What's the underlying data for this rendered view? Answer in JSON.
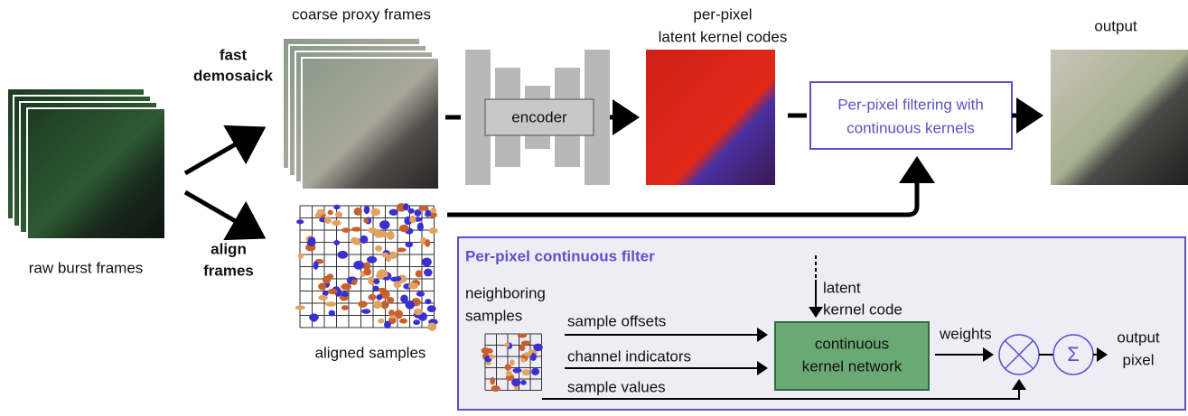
{
  "labels": {
    "coarse_proxy_frames": "coarse proxy frames",
    "fast_demosaick": [
      "fast",
      "demosaick"
    ],
    "latent_kernel_codes": [
      "per-pixel",
      "latent kernel codes"
    ],
    "output": "output",
    "raw_burst_frames": "raw burst frames",
    "encoder": "encoder",
    "filtering_box": [
      "Per-pixel filtering with",
      "continuous kernels"
    ],
    "align_frames": [
      "align",
      "frames"
    ],
    "aligned_samples": "aligned samples"
  },
  "filter_panel": {
    "title": "Per-pixel continuous filter",
    "neighboring_samples": [
      "neighboring",
      "samples"
    ],
    "latent_kernel_code": [
      "latent",
      "kernel code"
    ],
    "inputs": [
      "sample offsets",
      "channel indicators",
      "sample values"
    ],
    "network": [
      "continuous",
      "kernel network"
    ],
    "weights": "weights",
    "sum_symbol": "Σ",
    "output_pixel": [
      "output",
      "pixel"
    ]
  }
}
